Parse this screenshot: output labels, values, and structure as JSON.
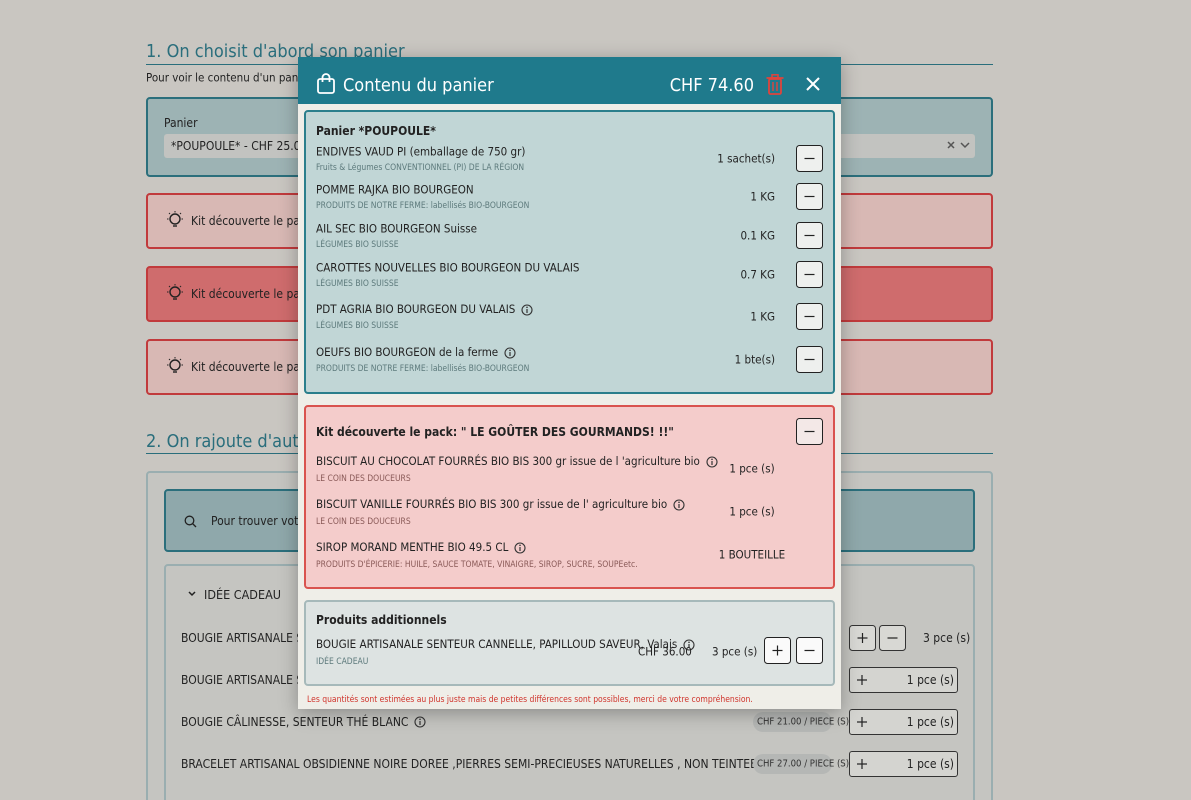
{
  "background": {
    "section1_title": "1. On choisit d'abord son panier",
    "section1_text": "Pour voir le contenu d'un panier, il faut",
    "basket_label": "Panier",
    "basket_select": "*POUPOULE* - CHF 25.00",
    "kit_alerts": [
      "Kit découverte le pack: \"JE",
      "Kit découverte le pack: \" LE",
      "Kit découverte le pack: \" LE"
    ],
    "section2_title": "2. On rajoute d'autres pr",
    "search_placeholder": "Pour trouver votre pro",
    "category": "IDÉE CADEAU",
    "products": [
      {
        "name": "BOUGIE ARTISANALE SENTEU",
        "qty": "3 pce (s)"
      },
      {
        "name": "BOUGIE ARTISANALE SENTEU",
        "qty": "1 pce (s)"
      },
      {
        "name": "BOUGIE CÂLINESSE, SENTEUR THÉ BLANC",
        "price": "CHF 21.00 / PIECE (S)",
        "qty": "1 pce (s)"
      },
      {
        "name": "BRACELET ARTISANAL OBSIDIENNE NOIRE DOREE ,PIERRES SEMI-PRECIEUSES NATURELLES , NON TEINTEES",
        "price": "CHF 27.00 / PIECE (S)",
        "qty": "1 pce (s)"
      }
    ]
  },
  "modal": {
    "title": "Contenu du panier",
    "total": "CHF 74.60",
    "basket": {
      "title": "Panier *POUPOULE*",
      "items": [
        {
          "name": "ENDIVES VAUD PI (emballage de 750 gr)",
          "origin": "Fruits & Légumes CONVENTIONNEL (PI) DE LA RÉGION",
          "qty": "1 sachet(s)"
        },
        {
          "name": "POMME RAJKA BIO BOURGEON",
          "origin": "PRODUITS DE NOTRE FERME: labellisés BIO-BOURGEON",
          "qty": "1 KG"
        },
        {
          "name": "AIL SEC BIO BOURGEON Suisse",
          "origin": "LÉGUMES BIO SUISSE",
          "qty": "0.1 KG"
        },
        {
          "name": "CAROTTES NOUVELLES BIO BOURGEON DU VALAIS",
          "origin": "LÉGUMES BIO SUISSE",
          "qty": "0.7 KG"
        },
        {
          "name": "PDT AGRIA BIO BOURGEON DU VALAIS",
          "origin": "LÉGUMES BIO SUISSE",
          "qty": "1 KG"
        },
        {
          "name": "OEUFS BIO BOURGEON de la ferme",
          "origin": "PRODUITS DE NOTRE FERME: labellisés BIO-BOURGEON",
          "qty": "1 bte(s)"
        }
      ]
    },
    "kit": {
      "title": "Kit découverte le pack: \" LE GOÛTER DES GOURMANDS! !!\"",
      "items": [
        {
          "name": "BISCUIT AU CHOCOLAT FOURRÉS BIO BIS 300 gr issue de l 'agriculture bio",
          "origin": "LE COIN DES DOUCEURS",
          "qty": "1 pce (s)"
        },
        {
          "name": "BISCUIT VANILLE FOURRÉS BIO BIS 300 gr issue de l' agriculture bio",
          "origin": "LE COIN DES DOUCEURS",
          "qty": "1 pce (s)"
        },
        {
          "name": "SIROP MORAND MENTHE BIO 49.5 CL",
          "origin": "PRODUITS D'ÉPICERIE: HUILE, SAUCE TOMATE, VINAIGRE, SIROP, SUCRE, SOUPEetc.",
          "qty": "1 BOUTEILLE"
        }
      ]
    },
    "additional": {
      "title": "Produits additionnels",
      "items": [
        {
          "name": "BOUGIE ARTISANALE SENTEUR CANNELLE, PAPILLOUD SAVEUR, Valais",
          "origin": "IDÉE CADEAU",
          "price": "CHF 36.00",
          "qty": "3 pce (s)"
        }
      ]
    },
    "note": "Les quantités sont estimées au plus juste mais de petites différences sont possibles, merci de votre compréhension."
  }
}
